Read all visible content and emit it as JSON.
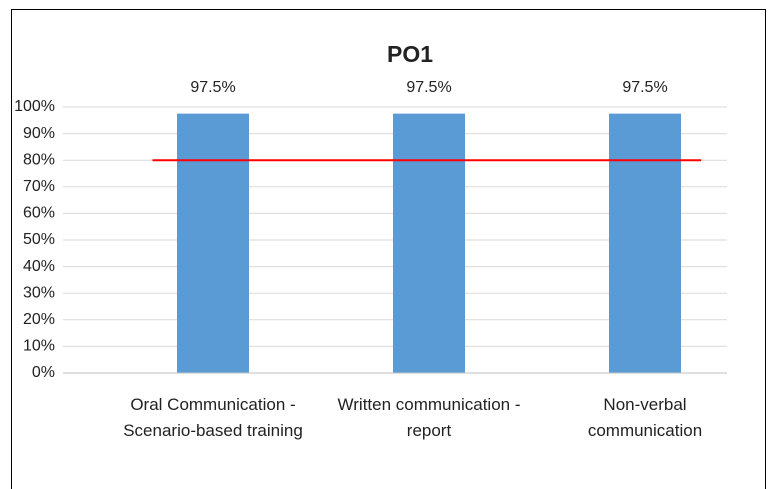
{
  "chart_data": {
    "type": "bar",
    "title": "PO1",
    "categories": [
      "Oral Communication - Scenario-based training",
      "Written communication - report",
      "Non-verbal communication"
    ],
    "values": [
      97.5,
      97.5,
      97.5
    ],
    "value_labels": [
      "97.5%",
      "97.5%",
      "97.5%"
    ],
    "color": "#5b9bd5",
    "ylim": [
      0,
      100
    ],
    "yticks": [
      {
        "value": 0,
        "label": "0%"
      },
      {
        "value": 10,
        "label": "10%"
      },
      {
        "value": 20,
        "label": "20%"
      },
      {
        "value": 30,
        "label": "30%"
      },
      {
        "value": 40,
        "label": "40%"
      },
      {
        "value": 50,
        "label": "50%"
      },
      {
        "value": 60,
        "label": "60%"
      },
      {
        "value": 70,
        "label": "70%"
      },
      {
        "value": 80,
        "label": "80%"
      },
      {
        "value": 90,
        "label": "90%"
      },
      {
        "value": 100,
        "label": "100%"
      }
    ],
    "grid": true,
    "reference_line": {
      "value": 80,
      "color": "#ff0000"
    }
  }
}
